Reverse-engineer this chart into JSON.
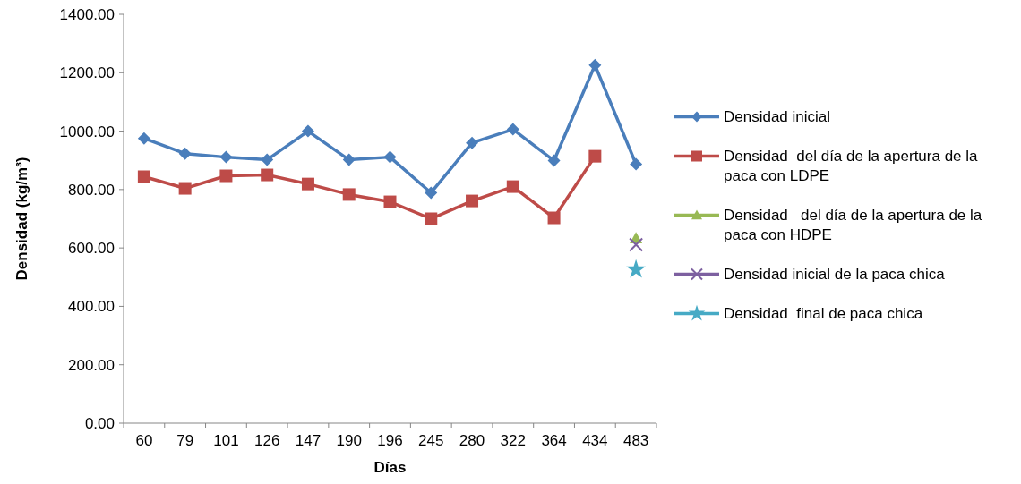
{
  "chart_data": {
    "type": "line",
    "xlabel": "Días",
    "ylabel": "Densidad (kg/m³)",
    "categories": [
      "60",
      "79",
      "101",
      "126",
      "147",
      "190",
      "196",
      "245",
      "280",
      "322",
      "364",
      "434",
      "483"
    ],
    "ylim": [
      0,
      1400
    ],
    "yticks": [
      {
        "value": 0,
        "label": "0.00"
      },
      {
        "value": 200,
        "label": "200.00"
      },
      {
        "value": 400,
        "label": "400.00"
      },
      {
        "value": 600,
        "label": "600.00"
      },
      {
        "value": 800,
        "label": "800.00"
      },
      {
        "value": 1000,
        "label": "1000.00"
      },
      {
        "value": 1200,
        "label": "1200.00"
      },
      {
        "value": 1400,
        "label": "1400.00"
      }
    ],
    "grid": false,
    "legend": "right",
    "line_style": "solid",
    "series": [
      {
        "name": "Densidad inicial",
        "color": "#4a7ebb",
        "marker": "diamond",
        "values": [
          975,
          923,
          911,
          902,
          1000,
          902,
          911,
          789,
          960,
          1006,
          899,
          1226,
          887
        ]
      },
      {
        "name": "Densidad  del día de la apertura de la paca con LDPE",
        "color": "#be4b48",
        "marker": "square",
        "values": [
          844,
          804,
          847,
          850,
          819,
          783,
          758,
          700,
          761,
          810,
          703,
          914,
          null
        ]
      },
      {
        "name": "Densidad   del día de la apertura de la paca con HDPE",
        "color": "#98b954",
        "marker": "triangle",
        "values": [
          null,
          null,
          null,
          null,
          null,
          null,
          null,
          null,
          null,
          null,
          null,
          null,
          633
        ]
      },
      {
        "name": "Densidad inicial de la paca chica",
        "color": "#7d60a0",
        "marker": "cross",
        "values": [
          null,
          null,
          null,
          null,
          null,
          null,
          null,
          null,
          null,
          null,
          null,
          null,
          611
        ]
      },
      {
        "name": "Densidad  final de paca chica",
        "color": "#46aac5",
        "marker": "star",
        "values": [
          null,
          null,
          null,
          null,
          null,
          null,
          null,
          null,
          null,
          null,
          null,
          null,
          526
        ]
      }
    ]
  }
}
